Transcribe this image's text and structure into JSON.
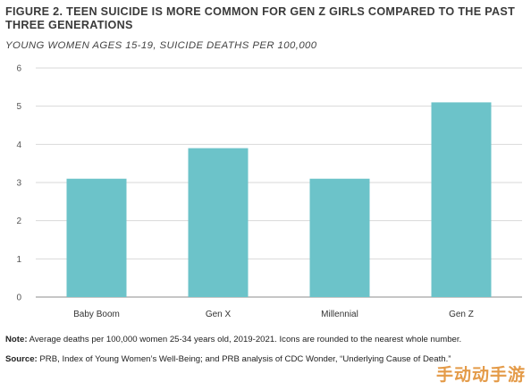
{
  "header": {
    "title": "FIGURE 2. TEEN SUICIDE IS MORE COMMON FOR GEN Z GIRLS COMPARED TO THE PAST THREE GENERATIONS",
    "subtitle": "YOUNG WOMEN AGES 15-19, SUICIDE DEATHS PER 100,000"
  },
  "chart_data": {
    "type": "bar",
    "title": "FIGURE 2. TEEN SUICIDE IS MORE COMMON FOR GEN Z GIRLS COMPARED TO THE PAST THREE GENERATIONS",
    "subtitle": "YOUNG WOMEN AGES 15-19, SUICIDE DEATHS PER 100,000",
    "categories": [
      "Baby Boom",
      "Gen X",
      "Millennial",
      "Gen Z"
    ],
    "values": [
      3.1,
      3.9,
      3.1,
      5.1
    ],
    "xlabel": "",
    "ylabel": "",
    "ylim": [
      0,
      6
    ],
    "yticks": [
      "0",
      "1",
      "2",
      "3",
      "4",
      "5",
      "6"
    ],
    "grid": true,
    "bar_color": "#6cc3c9",
    "grid_color": "#d9d9d9"
  },
  "footer": {
    "note_label": "Note:",
    "note_text": " Average deaths per 100,000 women 25-34 years old, 2019-2021. Icons are rounded to the nearest whole number.",
    "source_label": "Source:",
    "source_text": " PRB, Index of Young Women’s Well-Being; and PRB analysis of CDC Wonder, “Underlying Cause of Death.”"
  },
  "watermark": "手动动手游"
}
